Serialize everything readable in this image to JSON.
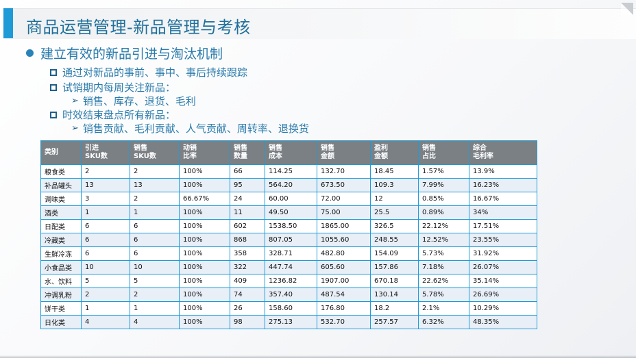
{
  "title": "商品运营管理-新品管理与考核",
  "bullet": "建立有效的新品引进与淘汰机制",
  "items": [
    {
      "text": "通过对新品的事前、事中、事后持续跟踪"
    },
    {
      "text": "试销期内每周关注新品：",
      "sub": "销售、库存、退货、毛利"
    },
    {
      "text": "时效结束盘点所有新品：",
      "sub": "销售贡献、毛利贡献、人气贡献、周转率、退换货"
    }
  ],
  "table": {
    "headers": [
      [
        "类别",
        ""
      ],
      [
        "引进",
        "SKU数"
      ],
      [
        "销售",
        "SKU数"
      ],
      [
        "动销",
        "比率"
      ],
      [
        "销售",
        "数量"
      ],
      [
        "销售",
        "成本"
      ],
      [
        "销售",
        "金额"
      ],
      [
        "盈利",
        "金额"
      ],
      [
        "销售",
        "占比"
      ],
      [
        "综合",
        "毛利率"
      ]
    ],
    "rows": [
      [
        "粮食类",
        "2",
        "2",
        "100%",
        "66",
        "114.25",
        "132.70",
        "18.45",
        "1.57%",
        "13.9%"
      ],
      [
        "补品罐头",
        "13",
        "13",
        "100%",
        "95",
        "564.20",
        "673.50",
        "109.3",
        "7.99%",
        "16.23%"
      ],
      [
        "调味类",
        "3",
        "2",
        "66.67%",
        "24",
        "60.00",
        "72.00",
        "12",
        "0.85%",
        "16.67%"
      ],
      [
        "酒类",
        "1",
        "1",
        "100%",
        "11",
        "49.50",
        "75.00",
        "25.5",
        "0.89%",
        "34%"
      ],
      [
        "日配类",
        "6",
        "6",
        "100%",
        "602",
        "1538.50",
        "1865.00",
        "326.5",
        "22.12%",
        "17.51%"
      ],
      [
        "冷藏类",
        "6",
        "6",
        "100%",
        "868",
        "807.05",
        "1055.60",
        "248.55",
        "12.52%",
        "23.55%"
      ],
      [
        "生鲜冷冻",
        "6",
        "6",
        "100%",
        "358",
        "328.71",
        "482.80",
        "154.09",
        "5.73%",
        "31.92%"
      ],
      [
        "小食品类",
        "10",
        "10",
        "100%",
        "322",
        "447.74",
        "605.60",
        "157.86",
        "7.18%",
        "26.07%"
      ],
      [
        "水、饮料",
        "5",
        "5",
        "100%",
        "409",
        "1236.82",
        "1907.00",
        "670.18",
        "22.62%",
        "35.14%"
      ],
      [
        "冲调乳粉",
        "2",
        "2",
        "100%",
        "74",
        "357.40",
        "487.54",
        "130.14",
        "5.78%",
        "26.69%"
      ],
      [
        "饼干类",
        "1",
        "1",
        "100%",
        "26",
        "158.60",
        "176.80",
        "18.2",
        "2.1%",
        "10.29%"
      ],
      [
        "日化类",
        "4",
        "4",
        "100%",
        "98",
        "275.13",
        "532.70",
        "257.57",
        "6.32%",
        "48.35%"
      ]
    ]
  }
}
